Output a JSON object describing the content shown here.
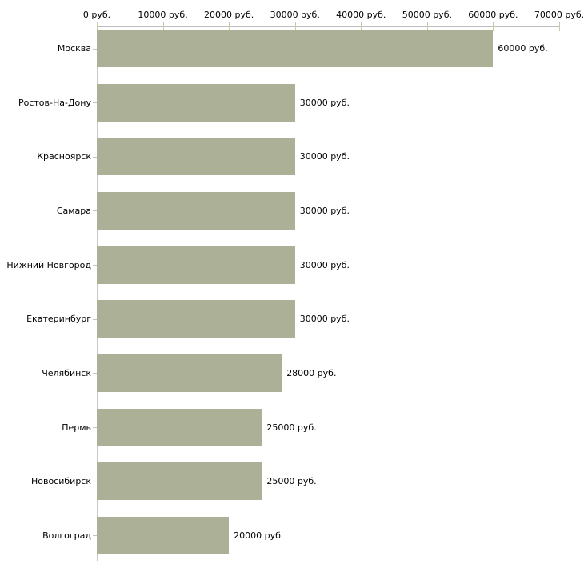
{
  "chart_data": {
    "type": "bar",
    "orientation": "horizontal",
    "title": "",
    "xlabel": "",
    "ylabel": "",
    "categories": [
      "Москва",
      "Ростов-На-Дону",
      "Красноярск",
      "Самара",
      "Нижний Новгород",
      "Екатеринбург",
      "Челябинск",
      "Пермь",
      "Новосибирск",
      "Волгоград"
    ],
    "values": [
      60000,
      30000,
      30000,
      30000,
      30000,
      30000,
      28000,
      25000,
      25000,
      20000
    ],
    "value_labels": [
      "60000 руб.",
      "30000 руб.",
      "30000 руб.",
      "30000 руб.",
      "30000 руб.",
      "30000 руб.",
      "28000 руб.",
      "25000 руб.",
      "25000 руб.",
      "20000 руб."
    ],
    "x_axis": {
      "position": "top",
      "range": [
        0,
        70000
      ],
      "ticks": [
        0,
        10000,
        20000,
        30000,
        40000,
        50000,
        60000,
        70000
      ],
      "tick_labels": [
        "0 руб.",
        "10000 руб.",
        "20000 руб.",
        "30000 руб.",
        "40000 руб.",
        "50000 руб.",
        "60000 руб.",
        "70000 руб."
      ]
    },
    "grid": false,
    "legend": false,
    "colors": {
      "bar": "#abb096",
      "axis_line": "#bdbdbd",
      "tick_mark": "#c9cc9e",
      "text": "#000000",
      "background": "#ffffff"
    }
  }
}
